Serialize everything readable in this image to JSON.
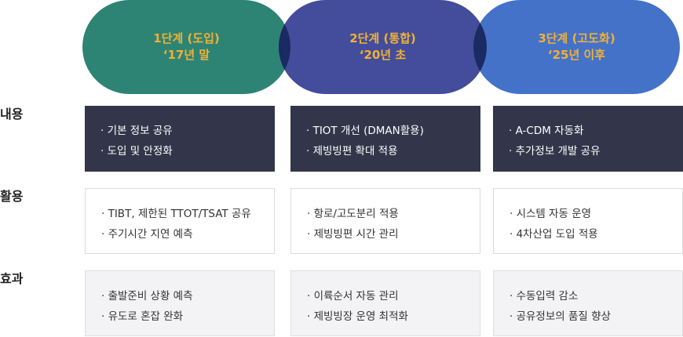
{
  "stages": [
    {
      "title": "1단계 (도입)",
      "period": "‘17년 말",
      "color": "#2e8474"
    },
    {
      "title": "2단계 (통합)",
      "period": "‘20년 초",
      "color": "#434d9b"
    },
    {
      "title": "3단계 (고도화)",
      "period": "‘25년 이후",
      "color": "#4472c9"
    }
  ],
  "overlap_color": "#1a2a62",
  "text_color": "#f2b134",
  "rows": [
    {
      "label": "내용",
      "cells": [
        [
          "· 기본 정보 공유",
          "· 도입 및 안정화"
        ],
        [
          "· TIOT 개선 (DMAN활용)",
          "· 제빙빙편 확대 적용"
        ],
        [
          "· A-CDM 자동화",
          "· 추가정보 개발 공유"
        ]
      ]
    },
    {
      "label": "활용",
      "cells": [
        [
          "· TIBT, 제한된 TTOT/TSAT 공유",
          "· 주기시간 지연 예측"
        ],
        [
          "· 항로/고도분리 적용",
          "· 제빙빙편 시간 관리"
        ],
        [
          "· 시스템 자동 운영",
          "· 4차산업 도입 적용"
        ]
      ]
    },
    {
      "label": "효과",
      "cells": [
        [
          "· 출발준비 상황 예측",
          "· 유도로 혼잡 완화"
        ],
        [
          "· 이륙순서 자동 관리",
          "· 제빙빙장 운영 최적화"
        ],
        [
          "· 수동입력 감소",
          "· 공유정보의 품질 향상"
        ]
      ]
    }
  ]
}
